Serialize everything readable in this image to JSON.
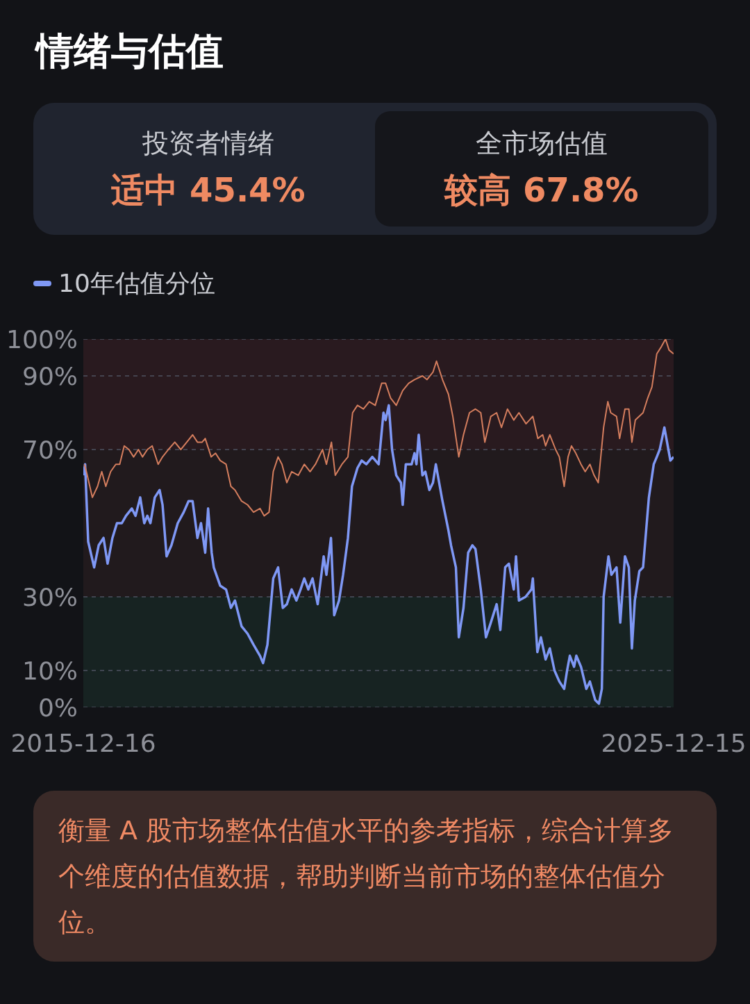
{
  "chart_data": [
    {
      "type": "other",
      "title": "情绪与估值",
      "annotations": [
        "投资者情绪",
        "适中 45.4%",
        "全市场估值",
        "较高 67.8%"
      ]
    },
    {
      "type": "line",
      "legend": "top left",
      "grid": "y",
      "marker": "none",
      "line_style": "solid",
      "xlim": [
        "2015-12-16",
        "2025-12-15"
      ],
      "xticks": [
        "2015-12-16",
        "2025-12-15"
      ],
      "ylim": [
        0,
        100
      ],
      "yticks": [
        {
          "value": 0,
          "label": "0%"
        },
        {
          "value": 10,
          "label": "10%"
        },
        {
          "value": 30,
          "label": "30%"
        },
        {
          "value": 70,
          "label": "70%"
        },
        {
          "value": 90,
          "label": "90%"
        },
        {
          "value": 100,
          "label": "100%"
        }
      ],
      "bands": [
        {
          "axis": "y",
          "from": 0,
          "to": 30,
          "color": "#172322"
        },
        {
          "axis": "y",
          "from": 30,
          "to": 70,
          "color": "#211a1d"
        },
        {
          "axis": "y",
          "from": 70,
          "to": 100,
          "color": "#291a1f"
        }
      ],
      "series": [
        {
          "name": "10年估值分位",
          "color": "#7f98f5",
          "x": [
            "2015-12-16",
            "2015-12-27",
            "2016-01-15",
            "2016-02-21",
            "2016-03-20",
            "2016-04-19",
            "2016-05-14",
            "2016-06-13",
            "2016-07-11",
            "2016-08-10",
            "2016-09-05",
            "2016-10-11",
            "2016-11-03",
            "2016-12-02",
            "2016-12-27",
            "2017-01-15",
            "2017-02-03",
            "2017-03-02",
            "2017-04-01",
            "2017-04-19",
            "2017-05-14",
            "2017-06-13",
            "2017-07-22",
            "2017-08-28",
            "2017-09-27",
            "2017-10-22",
            "2017-11-21",
            "2017-12-13",
            "2018-01-08",
            "2018-01-26",
            "2018-02-17",
            "2018-03-02",
            "2018-04-11",
            "2018-05-17",
            "2018-06-16",
            "2018-07-11",
            "2018-08-21",
            "2018-09-27",
            "2018-11-03",
            "2018-12-13",
            "2019-01-01",
            "2019-01-28",
            "2019-03-05",
            "2019-04-04",
            "2019-05-03",
            "2019-05-28",
            "2019-06-27",
            "2019-07-26",
            "2019-08-21",
            "2019-09-13",
            "2019-10-08",
            "2019-11-03",
            "2019-12-05",
            "2020-01-11",
            "2020-01-28",
            "2020-02-25",
            "2020-03-16",
            "2020-04-15",
            "2020-05-10",
            "2020-06-09",
            "2020-07-04",
            "2020-08-07",
            "2020-09-02",
            "2020-10-01",
            "2020-11-07",
            "2020-12-16",
            "2021-01-15",
            "2021-01-28",
            "2021-02-17",
            "2021-03-09",
            "2021-04-04",
            "2021-05-03",
            "2021-05-14",
            "2021-06-02",
            "2021-07-08",
            "2021-07-26",
            "2021-08-07",
            "2021-08-21",
            "2021-09-13",
            "2021-10-01",
            "2021-10-26",
            "2021-11-17",
            "2021-12-05",
            "2022-01-15",
            "2022-02-21",
            "2022-03-09",
            "2022-04-08",
            "2022-04-26",
            "2022-05-25",
            "2022-06-23",
            "2022-07-19",
            "2022-08-07",
            "2022-09-09",
            "2022-10-11",
            "2022-11-10",
            "2022-12-16",
            "2023-01-08",
            "2023-02-07",
            "2023-03-02",
            "2023-04-01",
            "2023-04-15",
            "2023-05-03",
            "2023-06-13",
            "2023-07-19",
            "2023-07-28",
            "2023-08-25",
            "2023-09-16",
            "2023-10-15",
            "2023-11-10",
            "2023-12-09",
            "2024-01-08",
            "2024-02-07",
            "2024-02-25",
            "2024-03-13",
            "2024-04-08",
            "2024-04-22",
            "2024-05-21",
            "2024-06-23",
            "2024-07-15",
            "2024-08-17",
            "2024-09-09",
            "2024-09-27",
            "2024-10-08",
            "2024-11-07",
            "2024-11-25",
            "2024-12-27",
            "2025-01-19",
            "2025-02-17",
            "2025-03-13",
            "2025-04-01",
            "2025-04-19",
            "2025-05-17",
            "2025-06-09",
            "2025-07-15",
            "2025-08-14",
            "2025-09-02",
            "2025-09-20",
            "2025-10-19",
            "2025-11-25",
            "2025-12-15"
          ],
          "values": [
            63,
            66,
            45,
            38,
            44,
            46,
            39,
            46,
            50,
            50,
            52,
            54,
            52,
            57,
            50,
            52,
            50,
            57,
            59,
            55,
            41,
            44,
            50,
            53,
            56,
            56,
            46,
            50,
            42,
            54,
            42,
            38,
            33,
            32,
            27,
            29,
            22,
            20,
            17,
            14,
            12,
            17,
            35,
            38,
            27,
            28,
            32,
            29,
            32,
            35,
            32,
            35,
            28,
            41,
            36,
            46,
            25,
            29,
            36,
            46,
            60,
            65,
            67,
            66,
            68,
            66,
            80,
            78,
            82,
            70,
            63,
            61,
            55,
            66,
            66,
            69,
            66,
            74,
            63,
            64,
            59,
            61,
            66,
            56,
            48,
            44,
            38,
            19,
            27,
            42,
            44,
            43,
            32,
            19,
            23,
            28,
            21,
            38,
            39,
            32,
            41,
            29,
            30,
            32,
            35,
            15,
            19,
            13,
            16,
            10,
            7,
            5,
            10,
            14,
            11,
            14,
            11,
            5,
            7,
            2,
            1,
            5,
            30,
            41,
            36,
            38,
            23,
            41,
            38,
            16,
            29,
            37,
            38,
            57,
            66,
            68,
            70,
            76,
            67,
            68
          ]
        },
        {
          "color": "#d57e5e",
          "x": [
            "2015-12-23",
            "2016-01-04",
            "2016-02-10",
            "2016-03-13",
            "2016-04-08",
            "2016-05-03",
            "2016-06-02",
            "2016-07-04",
            "2016-07-28",
            "2016-08-25",
            "2016-09-23",
            "2016-10-22",
            "2016-11-21",
            "2016-12-16",
            "2017-01-15",
            "2017-02-14",
            "2017-03-23",
            "2017-04-19",
            "2017-05-25",
            "2017-07-04",
            "2017-08-10",
            "2017-09-16",
            "2017-10-22",
            "2017-11-21",
            "2017-12-20",
            "2018-01-08",
            "2018-02-14",
            "2018-03-13",
            "2018-04-11",
            "2018-05-17",
            "2018-06-16",
            "2018-07-11",
            "2018-08-21",
            "2018-09-27",
            "2018-11-03",
            "2018-12-13",
            "2019-01-08",
            "2019-02-07",
            "2019-03-05",
            "2019-04-04",
            "2019-04-28",
            "2019-05-28",
            "2019-06-27",
            "2019-08-07",
            "2019-09-13",
            "2019-10-19",
            "2019-11-21",
            "2020-01-04",
            "2020-01-28",
            "2020-02-28",
            "2020-03-23",
            "2020-05-03",
            "2020-06-09",
            "2020-07-08",
            "2020-08-07",
            "2020-09-13",
            "2020-10-19",
            "2020-11-25",
            "2021-01-04",
            "2021-01-28",
            "2021-02-28",
            "2021-04-04",
            "2021-05-14",
            "2021-06-20",
            "2021-07-26",
            "2021-09-13",
            "2021-10-11",
            "2021-11-17",
            "2021-12-09",
            "2022-01-15",
            "2022-02-21",
            "2022-03-20",
            "2022-04-26",
            "2022-05-25",
            "2022-07-01",
            "2022-08-07",
            "2022-09-09",
            "2022-10-04",
            "2022-11-10",
            "2022-12-16",
            "2023-01-15",
            "2023-02-21",
            "2023-04-01",
            "2023-05-03",
            "2023-06-16",
            "2023-07-28",
            "2023-08-28",
            "2023-09-27",
            "2023-10-15",
            "2023-11-10",
            "2023-12-16",
            "2024-01-08",
            "2024-02-07",
            "2024-03-02",
            "2024-03-23",
            "2024-04-19",
            "2024-05-21",
            "2024-06-16",
            "2024-07-15",
            "2024-08-10",
            "2024-09-05",
            "2024-10-08",
            "2024-11-03",
            "2024-11-21",
            "2024-12-27",
            "2025-01-15",
            "2025-02-17",
            "2025-03-13",
            "2025-04-01",
            "2025-04-22",
            "2025-06-09",
            "2025-07-08",
            "2025-08-03",
            "2025-09-02",
            "2025-10-01",
            "2025-10-26",
            "2025-11-17",
            "2025-12-15"
          ],
          "values": [
            66,
            64,
            57,
            60,
            64,
            60,
            64,
            66,
            66,
            71,
            70,
            68,
            70,
            68,
            70,
            71,
            66,
            68,
            70,
            72,
            70,
            72,
            74,
            72,
            72,
            73,
            68,
            69,
            67,
            66,
            60,
            59,
            56,
            55,
            53,
            54,
            52,
            53,
            64,
            68,
            66,
            61,
            64,
            63,
            66,
            64,
            66,
            70,
            66,
            72,
            63,
            66,
            68,
            80,
            82,
            81,
            83,
            82,
            88,
            88,
            84,
            82,
            86,
            88,
            89,
            90,
            89,
            91,
            94,
            89,
            85,
            79,
            68,
            74,
            80,
            81,
            80,
            72,
            79,
            80,
            76,
            81,
            78,
            80,
            77,
            79,
            73,
            74,
            71,
            74,
            70,
            68,
            60,
            68,
            71,
            69,
            66,
            64,
            66,
            63,
            61,
            76,
            83,
            80,
            79,
            73,
            81,
            81,
            72,
            78,
            80,
            84,
            87,
            96,
            98,
            100,
            97,
            96
          ]
        }
      ],
      "annotations": [
        "衡量 A 股市场整体估值水平的参考指标，综合计算多个维度的估值数据，帮助判断当前市场的整体估值分位。"
      ]
    }
  ]
}
